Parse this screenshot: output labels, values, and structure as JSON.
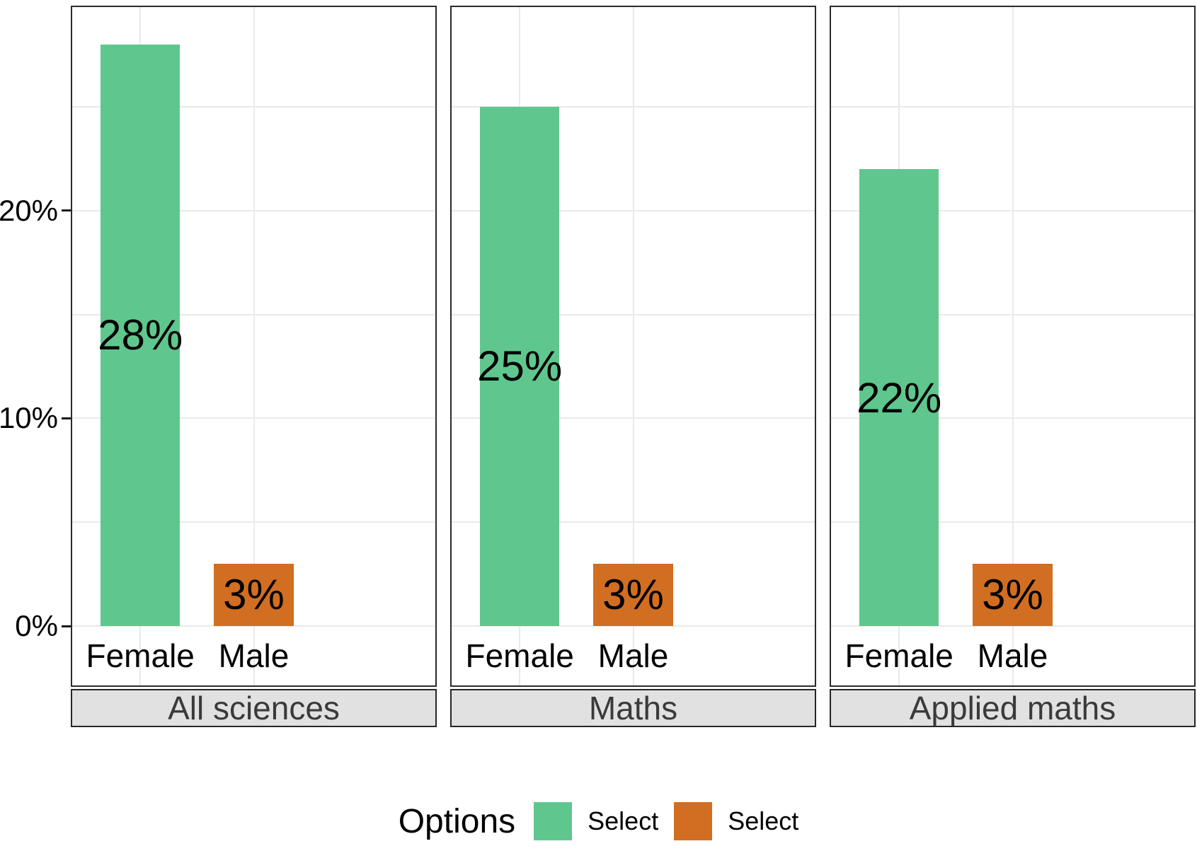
{
  "chart_data": {
    "type": "bar",
    "faceted": true,
    "facets": [
      "All sciences",
      "Maths",
      "Applied maths"
    ],
    "categories": [
      "Female",
      "Male"
    ],
    "series": [
      {
        "facet": "All sciences",
        "values": [
          28,
          3
        ],
        "labels": [
          "28%",
          "3%"
        ]
      },
      {
        "facet": "Maths",
        "values": [
          25,
          3
        ],
        "labels": [
          "25%",
          "3%"
        ]
      },
      {
        "facet": "Applied maths",
        "values": [
          22,
          3
        ],
        "labels": [
          "22%",
          "3%"
        ]
      }
    ],
    "bar_colors": [
      "#5fc78d",
      "#d26e21"
    ],
    "y_ticks": [
      {
        "value": 0,
        "label": "0%"
      },
      {
        "value": 10,
        "label": "10%"
      },
      {
        "value": 20,
        "label": "20%"
      }
    ],
    "y_gridlines": [
      0,
      5,
      10,
      15,
      20,
      25
    ],
    "ylim": [
      0,
      29.8
    ],
    "xlabel": "",
    "ylabel": "",
    "grid": true,
    "legend": {
      "title": "Options",
      "position": "bottom",
      "entries": [
        {
          "label": "Select",
          "color": "#5fc78d"
        },
        {
          "label": "Select",
          "color": "#d26e21"
        }
      ]
    },
    "style": {
      "gridline_color": "#e9e9e9",
      "panel_border_color": "#2b2b2b",
      "strip_background": "#e1e1e1",
      "strip_text_color": "#3a3a3a",
      "tick_color": "#1a1a1a"
    }
  }
}
